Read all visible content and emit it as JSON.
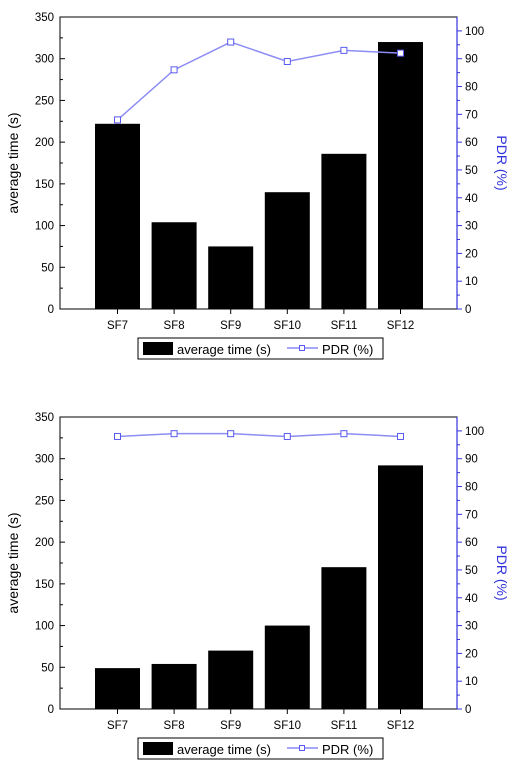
{
  "colors": {
    "bars": "#000000",
    "pdr_line": "#8c8cf5",
    "pdr_marker_stroke": "#5a5af0",
    "right_axis": "#3333dd",
    "axis": "#000000"
  },
  "legend_labels": {
    "bars": "average time (s)",
    "line": "PDR (%)"
  },
  "chart_data": [
    {
      "type": "bar",
      "categories": [
        "SF7",
        "SF8",
        "SF9",
        "SF10",
        "SF11",
        "SF12"
      ],
      "series": [
        {
          "name": "average time (s)",
          "type": "bar",
          "axis": "left",
          "values": [
            222,
            104,
            75,
            140,
            186,
            320
          ]
        },
        {
          "name": "PDR (%)",
          "type": "line",
          "axis": "right",
          "values": [
            68,
            86,
            96,
            89,
            93,
            92
          ]
        }
      ],
      "title": "",
      "xlabel": "",
      "ylabel": "average time (s)",
      "y2label": "PDR (%)",
      "ylim": [
        0,
        350
      ],
      "y2lim": [
        0,
        105
      ],
      "yticks": [
        "0",
        "50",
        "100",
        "150",
        "200",
        "250",
        "300",
        "350"
      ],
      "y2ticks": [
        "0",
        "10",
        "20",
        "30",
        "40",
        "50",
        "60",
        "70",
        "80",
        "90",
        "100"
      ],
      "legend": "bottom",
      "grid": false
    },
    {
      "type": "bar",
      "categories": [
        "SF7",
        "SF8",
        "SF9",
        "SF10",
        "SF11",
        "SF12"
      ],
      "series": [
        {
          "name": "average time (s)",
          "type": "bar",
          "axis": "left",
          "values": [
            49,
            54,
            70,
            100,
            170,
            292
          ]
        },
        {
          "name": "PDR (%)",
          "type": "line",
          "axis": "right",
          "values": [
            98,
            99,
            99,
            98,
            99,
            98
          ]
        }
      ],
      "title": "",
      "xlabel": "",
      "ylabel": "average time (s)",
      "y2label": "PDR (%)",
      "ylim": [
        0,
        350
      ],
      "y2lim": [
        0,
        105
      ],
      "yticks": [
        "0",
        "50",
        "100",
        "150",
        "200",
        "250",
        "300",
        "350"
      ],
      "y2ticks": [
        "0",
        "10",
        "20",
        "30",
        "40",
        "50",
        "60",
        "70",
        "80",
        "90",
        "100"
      ],
      "legend": "bottom",
      "grid": false
    }
  ]
}
